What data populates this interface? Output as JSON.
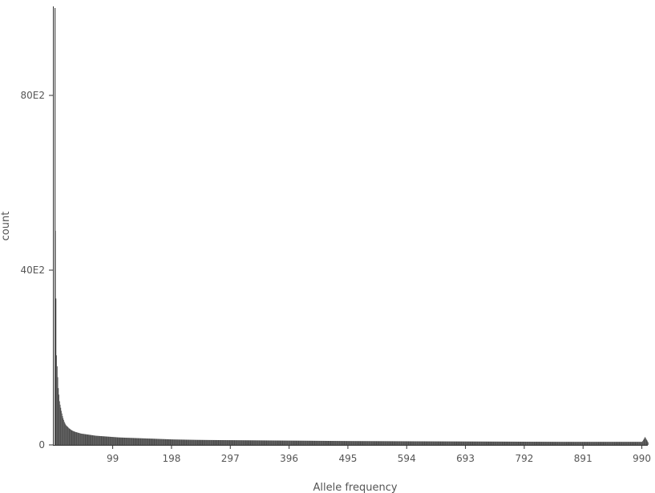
{
  "chart_data": {
    "type": "bar",
    "title": "",
    "xlabel": "Allele frequency",
    "ylabel": "count",
    "xlim": [
      1,
      1000
    ],
    "ylim": [
      0,
      10000
    ],
    "x_ticks": [
      99,
      198,
      297,
      396,
      495,
      594,
      693,
      792,
      891,
      990
    ],
    "x_tick_labels": [
      "99",
      "198",
      "297",
      "396",
      "495",
      "594",
      "693",
      "792",
      "891",
      "990"
    ],
    "y_ticks": [
      0,
      4000,
      8000
    ],
    "y_tick_labels": [
      "0",
      "40E2",
      "80E2"
    ],
    "grid": false,
    "legend": "none",
    "bar_color": "#4a4a4a",
    "axis_color": "#333333",
    "bins": {
      "x": [
        1,
        2,
        3,
        4,
        5,
        6,
        7,
        8,
        9,
        10,
        11,
        12,
        13,
        14,
        15,
        16,
        17,
        18,
        19,
        20,
        25,
        30,
        35,
        40,
        45,
        50,
        55,
        60,
        70,
        80,
        90,
        100,
        110,
        120,
        130,
        140,
        150,
        160,
        170,
        180,
        190,
        200,
        220,
        240,
        260,
        280,
        300,
        320,
        340,
        360,
        380,
        400,
        420,
        440,
        460,
        480,
        500,
        520,
        540,
        560,
        580,
        600,
        620,
        640,
        660,
        680,
        700,
        720,
        740,
        760,
        780,
        800,
        820,
        840,
        860,
        880,
        900,
        920,
        940,
        960,
        980,
        990,
        995,
        1000
      ],
      "count": [
        10000,
        4900,
        3350,
        2050,
        1800,
        1550,
        1300,
        1150,
        1000,
        920,
        850,
        780,
        720,
        660,
        610,
        570,
        530,
        500,
        470,
        450,
        380,
        330,
        300,
        280,
        260,
        250,
        240,
        230,
        210,
        200,
        190,
        180,
        170,
        165,
        160,
        155,
        150,
        145,
        140,
        135,
        130,
        125,
        120,
        115,
        112,
        110,
        108,
        106,
        104,
        102,
        100,
        98,
        96,
        94,
        92,
        90,
        88,
        87,
        86,
        85,
        84,
        83,
        82,
        81,
        80,
        79,
        78,
        77,
        76,
        75,
        74,
        73,
        72,
        71,
        70,
        70,
        70,
        70,
        70,
        70,
        70,
        70,
        180,
        60
      ]
    }
  }
}
